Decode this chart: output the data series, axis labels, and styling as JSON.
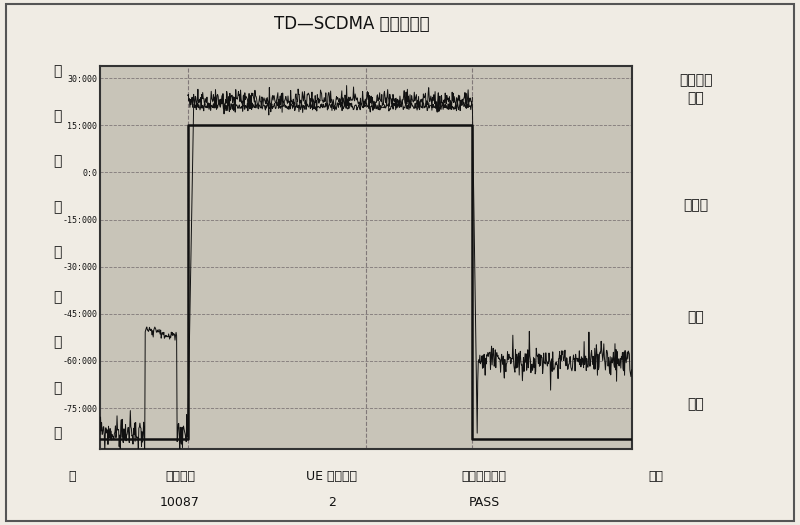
{
  "title": "TD—SCDMA 终端综测仪",
  "right_labels_top": "时间开关\n模板",
  "right_label2": "关功率",
  "right_label3": "单次",
  "right_label4": "连续",
  "left_labels": [
    "功",
    "率",
    "频",
    "谱",
    "调",
    "制",
    "接",
    "收",
    "自"
  ],
  "bottom_col1_label": "工作频点",
  "bottom_col2_label": "UE 功率等级",
  "bottom_col3_label": "时间开关模板",
  "bottom_col4_label": "返回",
  "bottom_col1_val": "10087",
  "bottom_col2_val": "2",
  "bottom_col3_val": "PASS",
  "bottom_left_label": "动",
  "ylim": [
    -88,
    34
  ],
  "yticks": [
    30,
    15,
    0,
    -15,
    -30,
    -45,
    -60,
    -75
  ],
  "ytick_labels": [
    "30:000",
    "15:000",
    "0:0",
    "-15:000",
    "-30:000",
    "-45:000",
    "-60:000",
    "-75:000"
  ],
  "outer_bg": "#f0ece4",
  "plot_bg": "#c8c4b8",
  "grid_color": "#807878",
  "line_color": "#111111",
  "border_color": "#333333"
}
